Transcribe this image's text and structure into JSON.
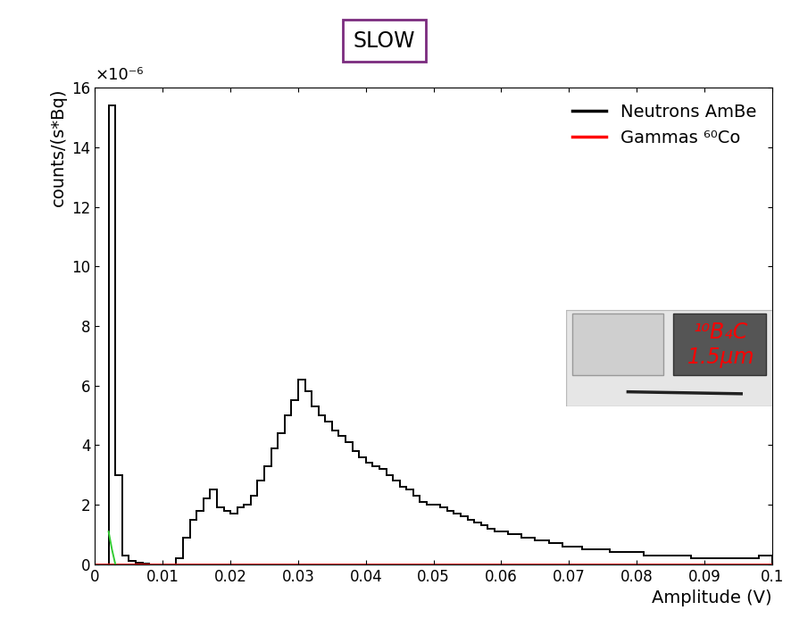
{
  "chart_data": {
    "type": "histogram",
    "title": "SLOW",
    "x_label": "Amplitude (V)",
    "y_label": "counts/(s*Bq)",
    "annotations": [
      "×10⁻⁶",
      "¹⁰B₄C\n1.5µm"
    ],
    "xlim": [
      0,
      0.1
    ],
    "xticks": [
      0,
      0.01,
      0.02,
      0.03,
      0.04,
      0.05,
      0.06,
      0.07,
      0.08,
      0.09,
      0.1
    ],
    "ylim": [
      0,
      16
    ],
    "yticks": [
      0,
      2,
      4,
      6,
      8,
      10,
      12,
      14,
      16
    ],
    "legend": "upper right",
    "grid": false,
    "series": [
      {
        "name": "Neutrons AmBe",
        "color": "#000000",
        "type": "histogram",
        "bins": [
          0,
          0.001,
          0.002,
          0.003,
          0.004,
          0.005,
          0.006,
          0.007,
          0.008,
          0.009,
          0.01,
          0.011,
          0.012,
          0.013,
          0.014,
          0.015,
          0.016,
          0.017,
          0.018,
          0.019,
          0.02,
          0.021,
          0.022,
          0.023,
          0.024,
          0.025,
          0.026,
          0.027,
          0.028,
          0.029,
          0.03,
          0.031,
          0.032,
          0.033,
          0.034,
          0.035,
          0.036,
          0.037,
          0.038,
          0.039,
          0.04,
          0.041,
          0.042,
          0.043,
          0.044,
          0.045,
          0.046,
          0.047,
          0.048,
          0.049,
          0.05,
          0.051,
          0.052,
          0.053,
          0.054,
          0.055,
          0.056,
          0.057,
          0.058,
          0.059,
          0.06,
          0.061,
          0.062,
          0.063,
          0.064,
          0.065,
          0.066,
          0.067,
          0.068,
          0.069,
          0.07,
          0.071,
          0.072,
          0.073,
          0.074,
          0.075,
          0.076,
          0.077,
          0.078,
          0.079,
          0.08,
          0.081,
          0.082,
          0.083,
          0.084,
          0.085,
          0.086,
          0.087,
          0.088,
          0.089,
          0.09,
          0.091,
          0.092,
          0.093,
          0.094,
          0.095,
          0.096,
          0.097,
          0.098,
          0.099,
          0.1
        ],
        "values": [
          0,
          0,
          15.4,
          3.0,
          0.3,
          0.1,
          0.05,
          0.02,
          0,
          0,
          0,
          0,
          0.2,
          0.9,
          1.5,
          1.8,
          2.2,
          2.5,
          1.9,
          1.8,
          1.7,
          1.9,
          2.0,
          2.3,
          2.8,
          3.3,
          3.9,
          4.4,
          5.0,
          5.5,
          6.2,
          5.8,
          5.3,
          5.0,
          4.8,
          4.5,
          4.3,
          4.1,
          3.8,
          3.6,
          3.4,
          3.3,
          3.2,
          3.0,
          2.8,
          2.6,
          2.5,
          2.3,
          2.1,
          2.0,
          2.0,
          1.9,
          1.8,
          1.7,
          1.6,
          1.5,
          1.4,
          1.3,
          1.2,
          1.1,
          1.1,
          1.0,
          1.0,
          0.9,
          0.9,
          0.8,
          0.8,
          0.7,
          0.7,
          0.6,
          0.6,
          0.6,
          0.5,
          0.5,
          0.5,
          0.5,
          0.4,
          0.4,
          0.4,
          0.4,
          0.4,
          0.3,
          0.3,
          0.3,
          0.3,
          0.3,
          0.3,
          0.3,
          0.2,
          0.2,
          0.2,
          0.2,
          0.2,
          0.2,
          0.2,
          0.2,
          0.2,
          0.2,
          0.3,
          0.3
        ]
      },
      {
        "name": "Gammas ⁶⁰Co",
        "color": "#ff0000",
        "type": "histogram",
        "bins": [
          0,
          0.1
        ],
        "values": [
          0
        ]
      },
      {
        "color": "#33cc33",
        "type": "line",
        "x": [
          0.002,
          0.0025,
          0.003
        ],
        "values": [
          1.1,
          0.5,
          0
        ]
      }
    ]
  }
}
